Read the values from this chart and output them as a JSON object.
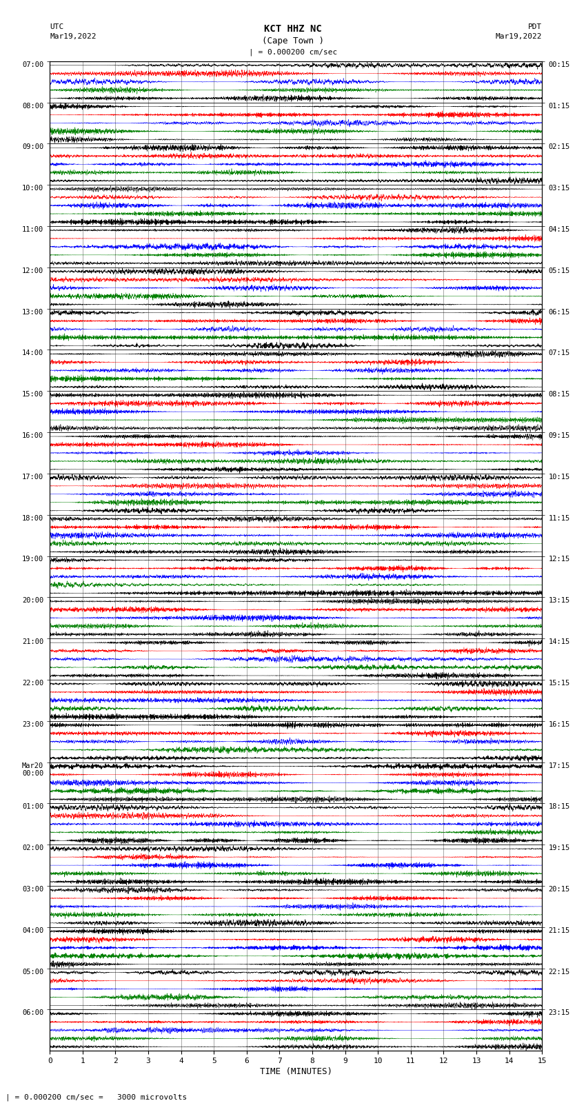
{
  "title_line1": "KCT HHZ NC",
  "title_line2": "(Cape Town )",
  "scale_text": "| = 0.000200 cm/sec",
  "footer_text": "| = 0.000200 cm/sec =   3000 microvolts",
  "left_label": "UTC",
  "left_date": "Mar19,2022",
  "right_label": "PDT",
  "right_date": "Mar19,2022",
  "xlabel": "TIME (MINUTES)",
  "xmin": 0,
  "xmax": 15,
  "xticks": [
    0,
    1,
    2,
    3,
    4,
    5,
    6,
    7,
    8,
    9,
    10,
    11,
    12,
    13,
    14,
    15
  ],
  "left_times": [
    "07:00",
    "08:00",
    "09:00",
    "10:00",
    "11:00",
    "12:00",
    "13:00",
    "14:00",
    "15:00",
    "16:00",
    "17:00",
    "18:00",
    "19:00",
    "20:00",
    "21:00",
    "22:00",
    "23:00",
    "Mar20\n00:00",
    "01:00",
    "02:00",
    "03:00",
    "04:00",
    "05:00",
    "06:00"
  ],
  "right_times": [
    "00:15",
    "01:15",
    "02:15",
    "03:15",
    "04:15",
    "05:15",
    "06:15",
    "07:15",
    "08:15",
    "09:15",
    "10:15",
    "11:15",
    "12:15",
    "13:15",
    "14:15",
    "15:15",
    "16:15",
    "17:15",
    "18:15",
    "19:15",
    "20:15",
    "21:15",
    "22:15",
    "23:15"
  ],
  "n_groups": 24,
  "sub_traces_per_group": 5,
  "colors_per_group": [
    "black",
    "red",
    "blue",
    "green",
    "black"
  ],
  "bg_color": "#ffffff",
  "fig_width": 8.5,
  "fig_height": 16.13,
  "dpi": 100,
  "noise_seed": 42
}
